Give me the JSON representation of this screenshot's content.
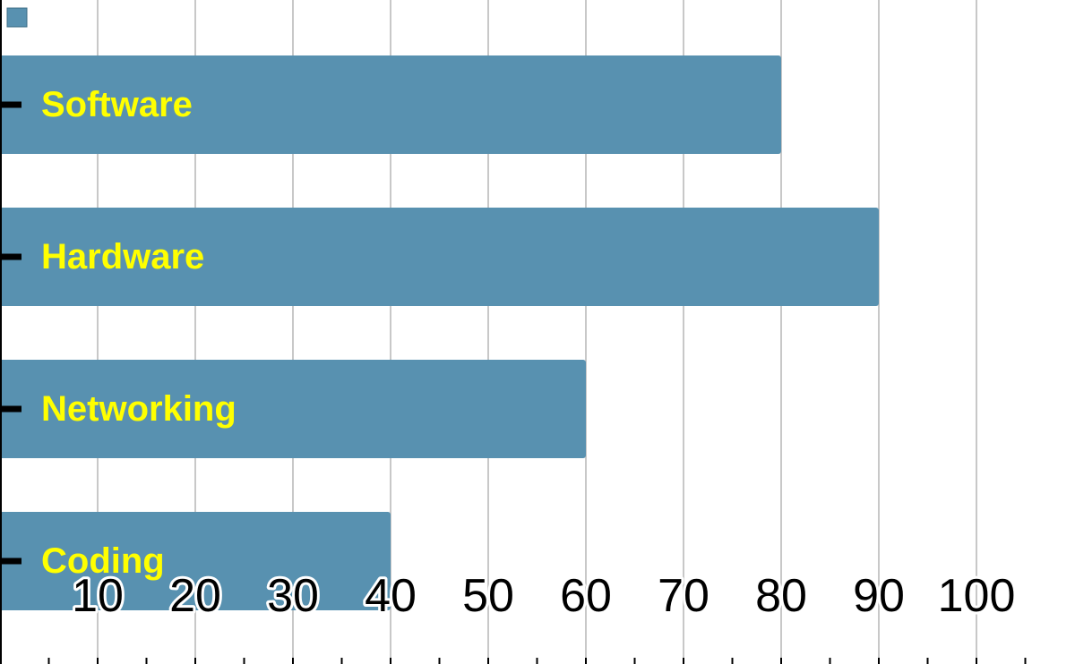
{
  "chart_data": {
    "type": "bar",
    "orientation": "horizontal",
    "categories": [
      "Software",
      "Hardware",
      "Networking",
      "Coding"
    ],
    "series": [
      {
        "values": [
          80,
          90,
          60,
          40
        ]
      }
    ],
    "xlim": [
      0,
      105
    ],
    "x_ticks": [
      "10",
      "20",
      "30",
      "40",
      "50",
      "60",
      "70",
      "80",
      "90",
      "100"
    ],
    "title": "",
    "xlabel": "",
    "ylabel": "",
    "grid": true,
    "legend": "top-left",
    "colors": {
      "bar": "#5891b0",
      "category_label": "#ffff00",
      "gridline": "#c8c8c8",
      "axis": "#000000",
      "tick_label": "#000000"
    }
  }
}
